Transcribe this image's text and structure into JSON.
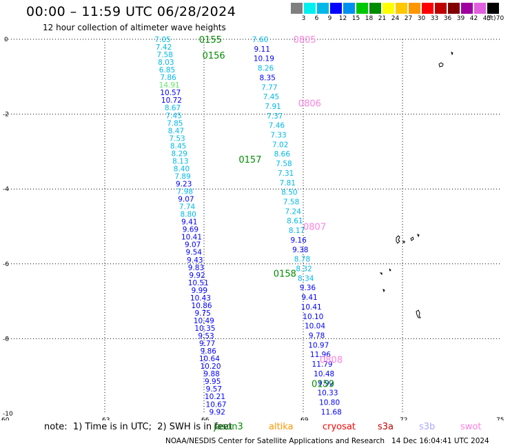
{
  "header": {
    "title": "00:00 – 11:59 UTC 06/28/2024",
    "subtitle": "12 hour collection of altimeter wave heights"
  },
  "colorbar": {
    "unit": "(ft)",
    "ticks": [
      "3",
      "6",
      "9",
      "12",
      "15",
      "18",
      "21",
      "24",
      "27",
      "30",
      "33",
      "36",
      "39",
      "42",
      "45",
      "70"
    ],
    "colors": [
      "#808080",
      "#00f0f0",
      "#00b8e8",
      "#0000ff",
      "#0090f0",
      "#00c800",
      "#008c00",
      "#ffff00",
      "#ffc800",
      "#ff9600",
      "#ff0000",
      "#c00000",
      "#800000",
      "#a000a0",
      "#e060e0",
      "#000000"
    ]
  },
  "axes": {
    "lon_labels": [
      "60",
      "63",
      "66",
      "69",
      "72",
      "75"
    ],
    "lat_labels": [
      "0",
      "-2",
      "-4",
      "-6",
      "-8",
      "-10"
    ]
  },
  "swaths": [
    {
      "lon_start": 64.75,
      "lon_end": 66.4,
      "lat_start": 0.0,
      "lat_end": -9.95,
      "values": [
        "7.05",
        "7.42",
        "7.58",
        "8.03",
        "6.85",
        "7.86",
        "14.91",
        "10.57",
        "10.72",
        "8.67",
        "7.45",
        "7.85",
        "8.47",
        "7.53",
        "8.45",
        "8.29",
        "8.13",
        "8.40",
        "7.89",
        "9.23",
        "7.98",
        "9.07",
        "7.74",
        "8.80",
        "9.41",
        "9.69",
        "10.41",
        "9.07",
        "9.54",
        "9.43",
        "9.83",
        "9.92",
        "10.51",
        "9.99",
        "10.43",
        "10.86",
        "9.75",
        "10.49",
        "10.35",
        "9.53",
        "9.77",
        "9.86",
        "10.64",
        "10.20",
        "9.88",
        "9.95",
        "9.57",
        "10.21",
        "10.67",
        "9.92"
      ],
      "colors": [
        "#00b8e8",
        "#00b8e8",
        "#00b8e8",
        "#00b8e8",
        "#00b8e8",
        "#00b8e8",
        "#60e860",
        "#0000ff",
        "#0000ff",
        "#00b8e8",
        "#00b8e8",
        "#00b8e8",
        "#00b8e8",
        "#00b8e8",
        "#00b8e8",
        "#00b8e8",
        "#00b8e8",
        "#00b8e8",
        "#00b8e8",
        "#0000ff",
        "#00b8e8",
        "#0000ff",
        "#00b8e8",
        "#00b8e8",
        "#0000ff",
        "#0000ff",
        "#0000ff",
        "#0000ff",
        "#0000ff",
        "#0000ff",
        "#0000ff",
        "#0000ff",
        "#0000ff",
        "#0000ff",
        "#0000ff",
        "#0000ff",
        "#0000ff",
        "#0000ff",
        "#0000ff",
        "#0000ff",
        "#0000ff",
        "#0000ff",
        "#0000ff",
        "#0000ff",
        "#0000ff",
        "#0000ff",
        "#0000ff",
        "#0000ff",
        "#0000ff",
        "#0000ff"
      ],
      "passes": [
        {
          "label": "0155",
          "lat": 0.0,
          "lon": 65.85
        },
        {
          "label": "0156",
          "lat": -0.42,
          "lon": 65.95
        },
        {
          "label": "0157",
          "lat": -3.2,
          "lon": 67.05
        },
        {
          "label": "0158",
          "lat": -6.25,
          "lon": 68.1
        },
        {
          "label": "0159",
          "lat": -9.2,
          "lon": 69.25
        }
      ],
      "pass_color": "#008c00"
    },
    {
      "lon_start": 67.7,
      "lon_end": 69.85,
      "lat_start": 0.0,
      "lat_end": -9.95,
      "values": [
        "7.60",
        "9.11",
        "10.19",
        "8.26",
        "8.35",
        "7.77",
        "7.45",
        "7.91",
        "7.37",
        "7.46",
        "7.33",
        "7.02",
        "8.66",
        "7.58",
        "7.31",
        "7.81",
        "8.50",
        "7.58",
        "7.24",
        "8.61",
        "8.17",
        "9.16",
        "9.38",
        "8.78",
        "8.32",
        "8.34",
        "9.36",
        "9.41",
        "10.41",
        "10.10",
        "10.04",
        "9.78",
        "10.97",
        "11.96",
        "11.79",
        "10.48",
        "9.92",
        "10.33",
        "10.80",
        "11.68"
      ],
      "colors": [
        "#00b8e8",
        "#0000ff",
        "#0000ff",
        "#00b8e8",
        "#0000ff",
        "#00b8e8",
        "#00b8e8",
        "#00b8e8",
        "#00b8e8",
        "#00b8e8",
        "#00b8e8",
        "#00b8e8",
        "#00b8e8",
        "#00b8e8",
        "#00b8e8",
        "#00b8e8",
        "#00b8e8",
        "#00b8e8",
        "#00b8e8",
        "#00b8e8",
        "#00b8e8",
        "#0000ff",
        "#0000ff",
        "#00b8e8",
        "#00b8e8",
        "#00b8e8",
        "#0000ff",
        "#0000ff",
        "#0000ff",
        "#0000ff",
        "#0000ff",
        "#0000ff",
        "#0000ff",
        "#0000ff",
        "#0000ff",
        "#0000ff",
        "#0000ff",
        "#0000ff",
        "#0000ff",
        "#0000ff"
      ],
      "passes": [
        {
          "label": "0805",
          "lat": 0.0,
          "lon": 68.7
        },
        {
          "label": "0806",
          "lat": -1.7,
          "lon": 68.85
        },
        {
          "label": "0807",
          "lat": -5.0,
          "lon": 69.0
        },
        {
          "label": "0808",
          "lat": -8.55,
          "lon": 69.5
        }
      ],
      "pass_color": "#ff80e0"
    }
  ],
  "footer": {
    "note": "note:  1) Time is in UTC;  2) SWH is in feet",
    "satellites": [
      {
        "name": "jason3",
        "color": "#008c00"
      },
      {
        "name": "altika",
        "color": "#ff9600"
      },
      {
        "name": "cryosat",
        "color": "#ff0000"
      },
      {
        "name": "s3a",
        "color": "#c00000"
      },
      {
        "name": "s3b",
        "color": "#a8a8ff"
      },
      {
        "name": "swot",
        "color": "#ff80e0"
      }
    ],
    "credit": "NOAA/NESDIS Center for Satellite Applications and Research   14 Dec 16:04:41 UTC 2024"
  }
}
